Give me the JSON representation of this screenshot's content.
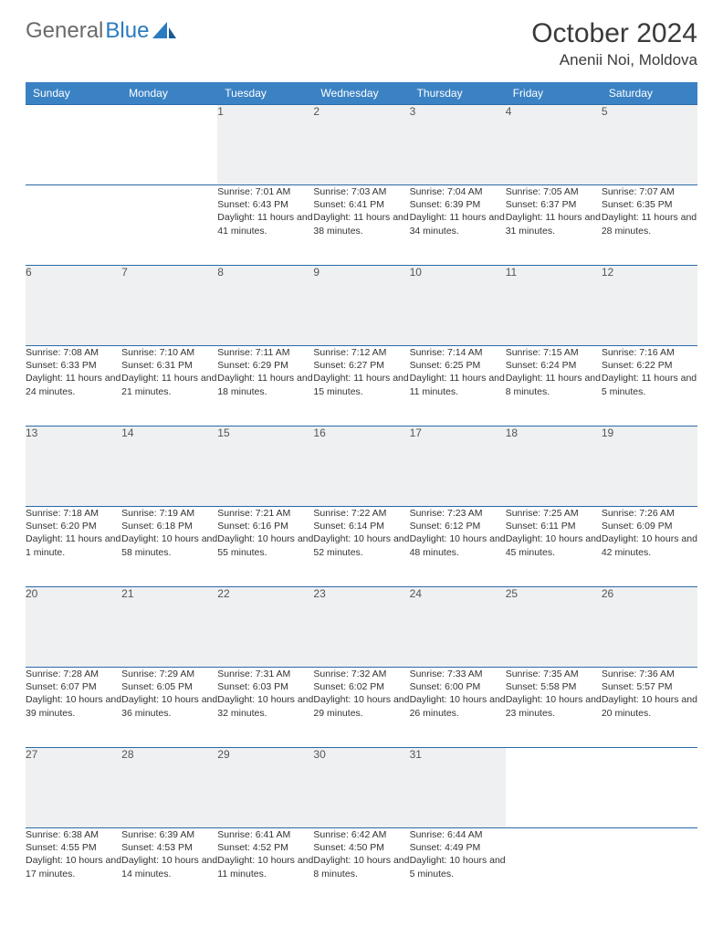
{
  "brand": {
    "part1": "General",
    "part2": "Blue"
  },
  "title": "October 2024",
  "location": "Anenii Noi, Moldova",
  "colors": {
    "header_bg": "#3b82c4",
    "header_text": "#ffffff",
    "daynum_bg": "#eef0f1",
    "border": "#2a6aa8",
    "logo_gray": "#6a6a6a",
    "logo_blue": "#2a7bbf"
  },
  "weekdays": [
    "Sunday",
    "Monday",
    "Tuesday",
    "Wednesday",
    "Thursday",
    "Friday",
    "Saturday"
  ],
  "weeks": [
    [
      null,
      null,
      {
        "n": "1",
        "sr": "Sunrise: 7:01 AM",
        "ss": "Sunset: 6:43 PM",
        "dl": "Daylight: 11 hours and 41 minutes."
      },
      {
        "n": "2",
        "sr": "Sunrise: 7:03 AM",
        "ss": "Sunset: 6:41 PM",
        "dl": "Daylight: 11 hours and 38 minutes."
      },
      {
        "n": "3",
        "sr": "Sunrise: 7:04 AM",
        "ss": "Sunset: 6:39 PM",
        "dl": "Daylight: 11 hours and 34 minutes."
      },
      {
        "n": "4",
        "sr": "Sunrise: 7:05 AM",
        "ss": "Sunset: 6:37 PM",
        "dl": "Daylight: 11 hours and 31 minutes."
      },
      {
        "n": "5",
        "sr": "Sunrise: 7:07 AM",
        "ss": "Sunset: 6:35 PM",
        "dl": "Daylight: 11 hours and 28 minutes."
      }
    ],
    [
      {
        "n": "6",
        "sr": "Sunrise: 7:08 AM",
        "ss": "Sunset: 6:33 PM",
        "dl": "Daylight: 11 hours and 24 minutes."
      },
      {
        "n": "7",
        "sr": "Sunrise: 7:10 AM",
        "ss": "Sunset: 6:31 PM",
        "dl": "Daylight: 11 hours and 21 minutes."
      },
      {
        "n": "8",
        "sr": "Sunrise: 7:11 AM",
        "ss": "Sunset: 6:29 PM",
        "dl": "Daylight: 11 hours and 18 minutes."
      },
      {
        "n": "9",
        "sr": "Sunrise: 7:12 AM",
        "ss": "Sunset: 6:27 PM",
        "dl": "Daylight: 11 hours and 15 minutes."
      },
      {
        "n": "10",
        "sr": "Sunrise: 7:14 AM",
        "ss": "Sunset: 6:25 PM",
        "dl": "Daylight: 11 hours and 11 minutes."
      },
      {
        "n": "11",
        "sr": "Sunrise: 7:15 AM",
        "ss": "Sunset: 6:24 PM",
        "dl": "Daylight: 11 hours and 8 minutes."
      },
      {
        "n": "12",
        "sr": "Sunrise: 7:16 AM",
        "ss": "Sunset: 6:22 PM",
        "dl": "Daylight: 11 hours and 5 minutes."
      }
    ],
    [
      {
        "n": "13",
        "sr": "Sunrise: 7:18 AM",
        "ss": "Sunset: 6:20 PM",
        "dl": "Daylight: 11 hours and 1 minute."
      },
      {
        "n": "14",
        "sr": "Sunrise: 7:19 AM",
        "ss": "Sunset: 6:18 PM",
        "dl": "Daylight: 10 hours and 58 minutes."
      },
      {
        "n": "15",
        "sr": "Sunrise: 7:21 AM",
        "ss": "Sunset: 6:16 PM",
        "dl": "Daylight: 10 hours and 55 minutes."
      },
      {
        "n": "16",
        "sr": "Sunrise: 7:22 AM",
        "ss": "Sunset: 6:14 PM",
        "dl": "Daylight: 10 hours and 52 minutes."
      },
      {
        "n": "17",
        "sr": "Sunrise: 7:23 AM",
        "ss": "Sunset: 6:12 PM",
        "dl": "Daylight: 10 hours and 48 minutes."
      },
      {
        "n": "18",
        "sr": "Sunrise: 7:25 AM",
        "ss": "Sunset: 6:11 PM",
        "dl": "Daylight: 10 hours and 45 minutes."
      },
      {
        "n": "19",
        "sr": "Sunrise: 7:26 AM",
        "ss": "Sunset: 6:09 PM",
        "dl": "Daylight: 10 hours and 42 minutes."
      }
    ],
    [
      {
        "n": "20",
        "sr": "Sunrise: 7:28 AM",
        "ss": "Sunset: 6:07 PM",
        "dl": "Daylight: 10 hours and 39 minutes."
      },
      {
        "n": "21",
        "sr": "Sunrise: 7:29 AM",
        "ss": "Sunset: 6:05 PM",
        "dl": "Daylight: 10 hours and 36 minutes."
      },
      {
        "n": "22",
        "sr": "Sunrise: 7:31 AM",
        "ss": "Sunset: 6:03 PM",
        "dl": "Daylight: 10 hours and 32 minutes."
      },
      {
        "n": "23",
        "sr": "Sunrise: 7:32 AM",
        "ss": "Sunset: 6:02 PM",
        "dl": "Daylight: 10 hours and 29 minutes."
      },
      {
        "n": "24",
        "sr": "Sunrise: 7:33 AM",
        "ss": "Sunset: 6:00 PM",
        "dl": "Daylight: 10 hours and 26 minutes."
      },
      {
        "n": "25",
        "sr": "Sunrise: 7:35 AM",
        "ss": "Sunset: 5:58 PM",
        "dl": "Daylight: 10 hours and 23 minutes."
      },
      {
        "n": "26",
        "sr": "Sunrise: 7:36 AM",
        "ss": "Sunset: 5:57 PM",
        "dl": "Daylight: 10 hours and 20 minutes."
      }
    ],
    [
      {
        "n": "27",
        "sr": "Sunrise: 6:38 AM",
        "ss": "Sunset: 4:55 PM",
        "dl": "Daylight: 10 hours and 17 minutes."
      },
      {
        "n": "28",
        "sr": "Sunrise: 6:39 AM",
        "ss": "Sunset: 4:53 PM",
        "dl": "Daylight: 10 hours and 14 minutes."
      },
      {
        "n": "29",
        "sr": "Sunrise: 6:41 AM",
        "ss": "Sunset: 4:52 PM",
        "dl": "Daylight: 10 hours and 11 minutes."
      },
      {
        "n": "30",
        "sr": "Sunrise: 6:42 AM",
        "ss": "Sunset: 4:50 PM",
        "dl": "Daylight: 10 hours and 8 minutes."
      },
      {
        "n": "31",
        "sr": "Sunrise: 6:44 AM",
        "ss": "Sunset: 4:49 PM",
        "dl": "Daylight: 10 hours and 5 minutes."
      },
      null,
      null
    ]
  ]
}
